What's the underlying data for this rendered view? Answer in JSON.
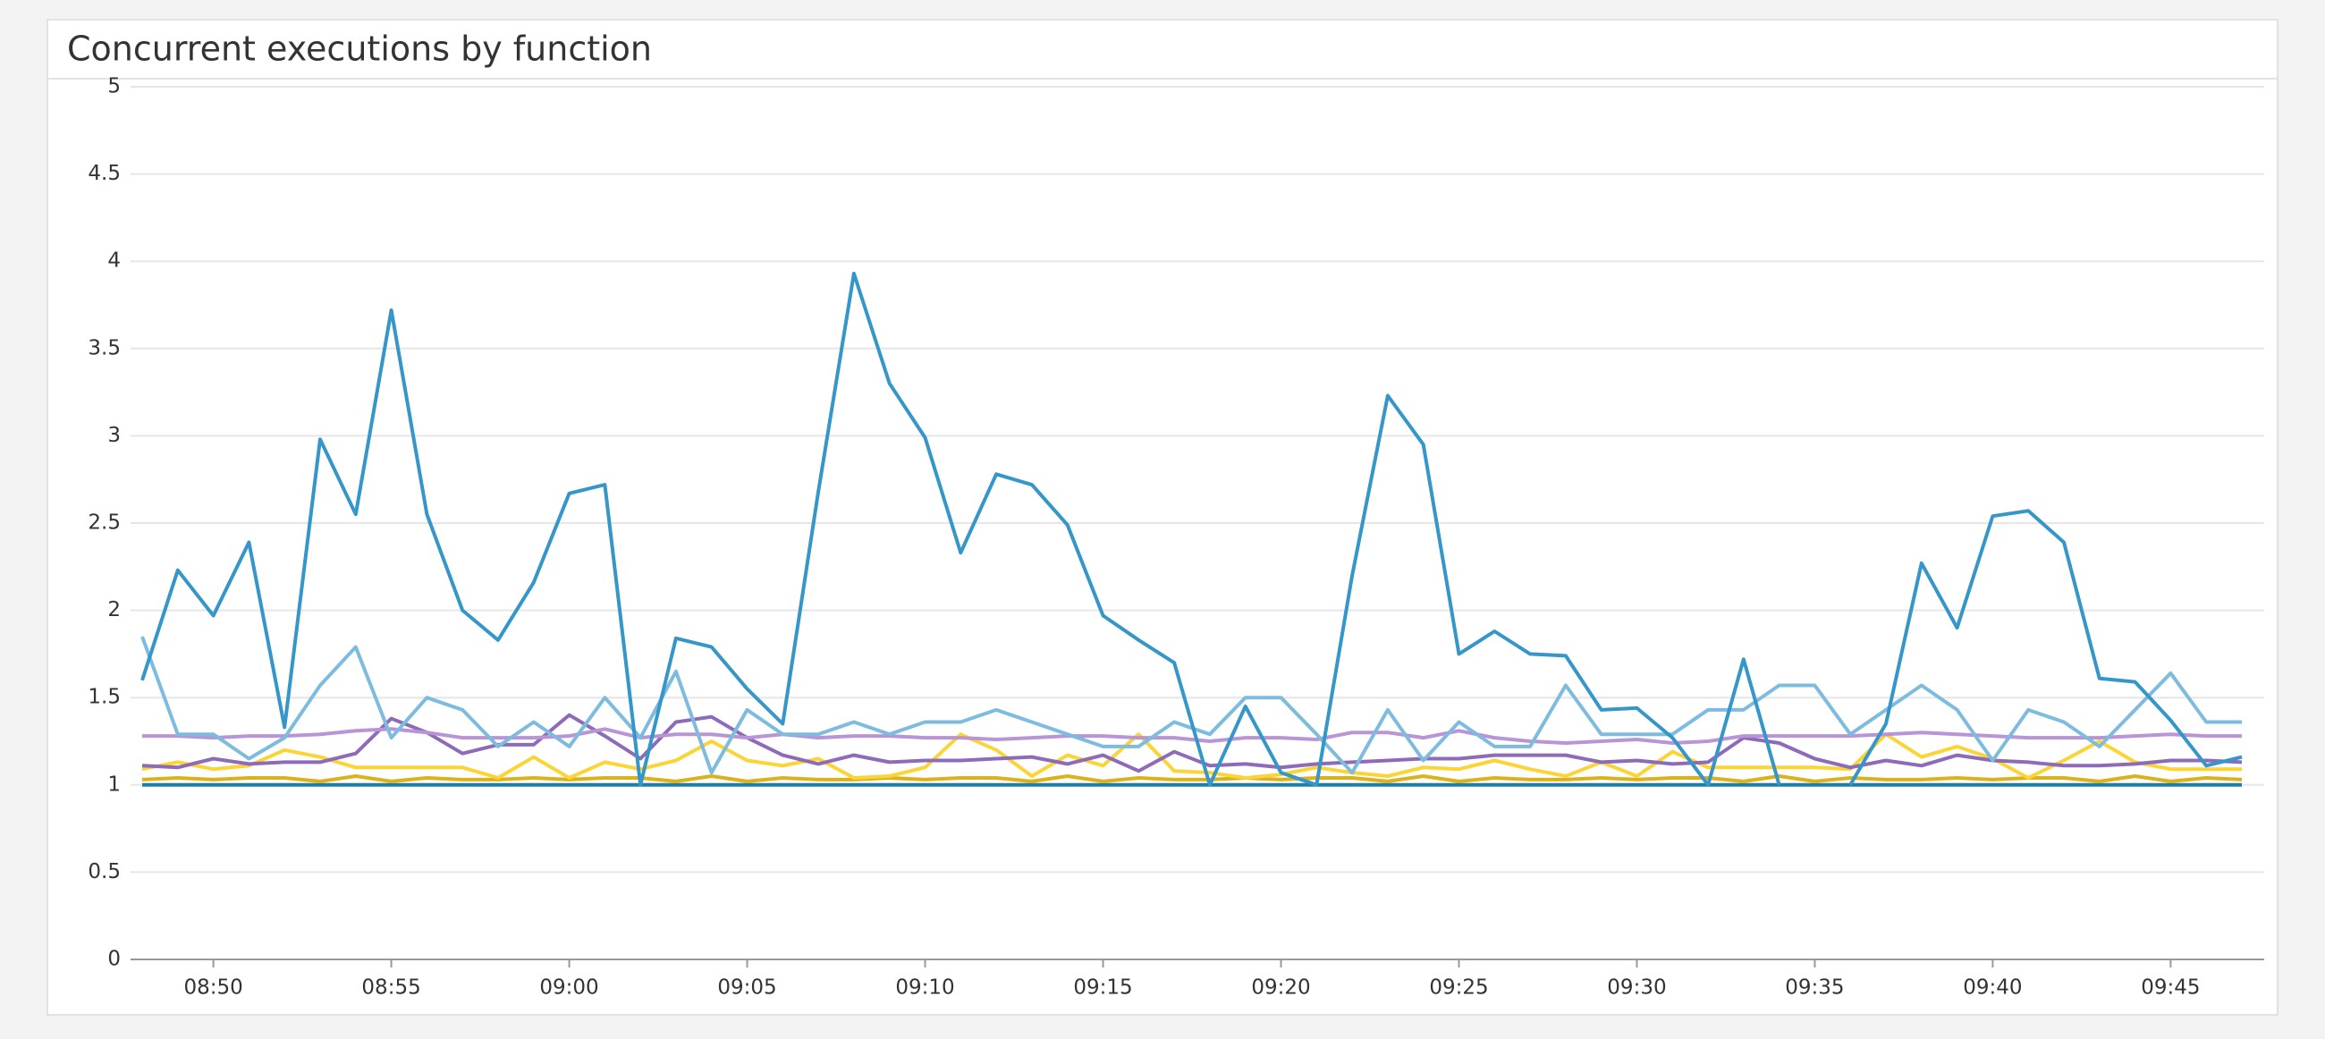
{
  "chart_data": {
    "type": "line",
    "title": "Concurrent executions by function",
    "x": [
      "08:48",
      "08:49",
      "08:50",
      "08:51",
      "08:52",
      "08:53",
      "08:54",
      "08:55",
      "08:56",
      "08:57",
      "08:58",
      "08:59",
      "09:00",
      "09:01",
      "09:02",
      "09:03",
      "09:04",
      "09:05",
      "09:06",
      "09:07",
      "09:08",
      "09:09",
      "09:10",
      "09:11",
      "09:12",
      "09:13",
      "09:14",
      "09:15",
      "09:16",
      "09:17",
      "09:18",
      "09:19",
      "09:20",
      "09:21",
      "09:22",
      "09:23",
      "09:24",
      "09:25",
      "09:26",
      "09:27",
      "09:28",
      "09:29",
      "09:30",
      "09:31",
      "09:32",
      "09:33",
      "09:34",
      "09:35",
      "09:36",
      "09:37",
      "09:38",
      "09:39",
      "09:40",
      "09:41",
      "09:42",
      "09:43",
      "09:44",
      "09:45",
      "09:46",
      "09:47"
    ],
    "xlim": [
      "08:48",
      "09:47"
    ],
    "xticks": [
      "08:50",
      "08:55",
      "09:00",
      "09:05",
      "09:10",
      "09:15",
      "09:20",
      "09:25",
      "09:30",
      "09:35",
      "09:40",
      "09:45"
    ],
    "ylim": [
      0,
      5
    ],
    "yticks": [
      0,
      0.5,
      1,
      1.5,
      2,
      2.5,
      3,
      3.5,
      4,
      4.5,
      5
    ],
    "grid": true,
    "series": [
      {
        "color": "#1f7fa3",
        "values": [
          1,
          1,
          1,
          1,
          1,
          1,
          1,
          1,
          1,
          1,
          1,
          1,
          1,
          1,
          1,
          1,
          1,
          1,
          1,
          1,
          1,
          1,
          1,
          1,
          1,
          1,
          1,
          1,
          1,
          1,
          1,
          1,
          1,
          1,
          1,
          1,
          1,
          1,
          1,
          1,
          1,
          1,
          1,
          1,
          1,
          1,
          1,
          1,
          1,
          1,
          1,
          1,
          1,
          1,
          1,
          1,
          1,
          1,
          1,
          1
        ]
      },
      {
        "color": "#d9b21e",
        "values": [
          1.03,
          1.04,
          1.03,
          1.04,
          1.04,
          1.02,
          1.05,
          1.02,
          1.04,
          1.03,
          1.03,
          1.04,
          1.03,
          1.04,
          1.04,
          1.02,
          1.05,
          1.02,
          1.04,
          1.03,
          1.03,
          1.04,
          1.03,
          1.04,
          1.04,
          1.02,
          1.05,
          1.02,
          1.04,
          1.03,
          1.03,
          1.04,
          1.03,
          1.04,
          1.04,
          1.02,
          1.05,
          1.02,
          1.04,
          1.03,
          1.03,
          1.04,
          1.03,
          1.04,
          1.04,
          1.02,
          1.05,
          1.02,
          1.04,
          1.03,
          1.03,
          1.04,
          1.03,
          1.04,
          1.04,
          1.02,
          1.05,
          1.02,
          1.04,
          1.03
        ]
      },
      {
        "color": "#fbd436",
        "values": [
          1.09,
          1.13,
          1.09,
          1.11,
          1.2,
          1.16,
          1.1,
          1.1,
          1.1,
          1.1,
          1.04,
          1.16,
          1.04,
          1.13,
          1.09,
          1.14,
          1.25,
          1.14,
          1.11,
          1.15,
          1.04,
          1.05,
          1.1,
          1.29,
          1.2,
          1.05,
          1.17,
          1.11,
          1.29,
          1.08,
          1.07,
          1.04,
          1.06,
          1.1,
          1.07,
          1.05,
          1.1,
          1.09,
          1.14,
          1.09,
          1.05,
          1.13,
          1.05,
          1.19,
          1.1,
          1.1,
          1.1,
          1.1,
          1.09,
          1.29,
          1.16,
          1.22,
          1.15,
          1.04,
          1.14,
          1.25,
          1.13,
          1.09,
          1.09,
          1.09
        ]
      },
      {
        "color": "#8e6bb8",
        "values": [
          1.11,
          1.1,
          1.15,
          1.12,
          1.13,
          1.13,
          1.18,
          1.38,
          1.3,
          1.18,
          1.23,
          1.23,
          1.4,
          1.28,
          1.15,
          1.36,
          1.39,
          1.27,
          1.17,
          1.12,
          1.17,
          1.13,
          1.14,
          1.14,
          1.15,
          1.16,
          1.12,
          1.17,
          1.08,
          1.19,
          1.11,
          1.12,
          1.1,
          1.12,
          1.13,
          1.14,
          1.15,
          1.15,
          1.17,
          1.17,
          1.17,
          1.13,
          1.14,
          1.12,
          1.13,
          1.27,
          1.24,
          1.15,
          1.1,
          1.14,
          1.11,
          1.17,
          1.14,
          1.13,
          1.11,
          1.11,
          1.12,
          1.14,
          1.14,
          1.13
        ]
      },
      {
        "color": "#b994d6",
        "values": [
          1.28,
          1.28,
          1.27,
          1.28,
          1.28,
          1.29,
          1.31,
          1.32,
          1.3,
          1.27,
          1.27,
          1.27,
          1.28,
          1.32,
          1.27,
          1.29,
          1.29,
          1.27,
          1.29,
          1.27,
          1.28,
          1.28,
          1.27,
          1.27,
          1.26,
          1.27,
          1.28,
          1.28,
          1.27,
          1.27,
          1.25,
          1.27,
          1.27,
          1.26,
          1.3,
          1.3,
          1.27,
          1.31,
          1.27,
          1.25,
          1.24,
          1.25,
          1.26,
          1.24,
          1.25,
          1.28,
          1.28,
          1.28,
          1.28,
          1.29,
          1.3,
          1.29,
          1.28,
          1.27,
          1.27,
          1.27,
          1.28,
          1.29,
          1.28,
          1.28
        ]
      },
      {
        "color": "#7dbbdf",
        "values": [
          1.85,
          1.29,
          1.29,
          1.15,
          1.27,
          1.57,
          1.79,
          1.27,
          1.5,
          1.43,
          1.22,
          1.36,
          1.22,
          1.5,
          1.27,
          1.65,
          1.07,
          1.43,
          1.29,
          1.29,
          1.36,
          1.29,
          1.36,
          1.36,
          1.43,
          1.36,
          1.29,
          1.22,
          1.22,
          1.36,
          1.29,
          1.5,
          1.5,
          1.29,
          1.07,
          1.43,
          1.14,
          1.36,
          1.22,
          1.22,
          1.57,
          1.29,
          1.29,
          1.29,
          1.43,
          1.43,
          1.57,
          1.57,
          1.29,
          1.43,
          1.57,
          1.43,
          1.14,
          1.43,
          1.36,
          1.22,
          1.43,
          1.64,
          1.36,
          1.36
        ]
      },
      {
        "color": "#3596c9",
        "values": [
          1.6,
          2.23,
          1.97,
          2.39,
          1.33,
          2.98,
          2.55,
          3.72,
          2.55,
          2.0,
          1.83,
          2.16,
          2.67,
          2.72,
          1.0,
          1.84,
          1.79,
          1.55,
          1.35,
          2.68,
          3.93,
          3.3,
          2.99,
          2.33,
          2.78,
          2.72,
          2.49,
          1.97,
          1.83,
          1.7,
          1.0,
          1.45,
          1.07,
          1.0,
          2.2,
          3.23,
          2.95,
          1.75,
          1.88,
          1.75,
          1.74,
          1.43,
          1.44,
          1.27,
          1.0,
          1.72,
          1.0,
          null,
          1.0,
          1.35,
          2.27,
          1.9,
          2.54,
          2.57,
          2.39,
          1.61,
          1.59,
          1.37,
          1.11,
          1.16
        ]
      }
    ]
  }
}
